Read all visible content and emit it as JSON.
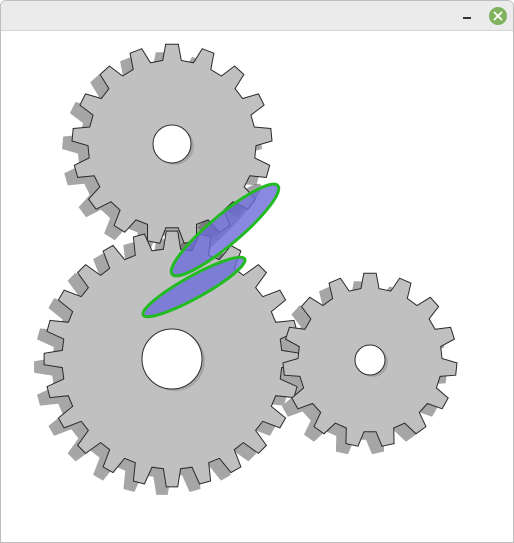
{
  "window": {
    "title": "",
    "minimize_icon": "minimize-icon",
    "close_icon": "close-icon",
    "close_color": "#7fb35f"
  },
  "scene": {
    "gear_fill": "#c0c0c0",
    "gear_shadow": "#a6a6a6",
    "gear_stroke": "#2a2a2a",
    "selection_fill": "#6b6bd9",
    "selection_stroke": "#22bb22",
    "gears": [
      {
        "name": "gear-top-left",
        "teeth": 17
      },
      {
        "name": "gear-bottom-left",
        "teeth": 24
      },
      {
        "name": "gear-right",
        "teeth": 15
      }
    ]
  }
}
